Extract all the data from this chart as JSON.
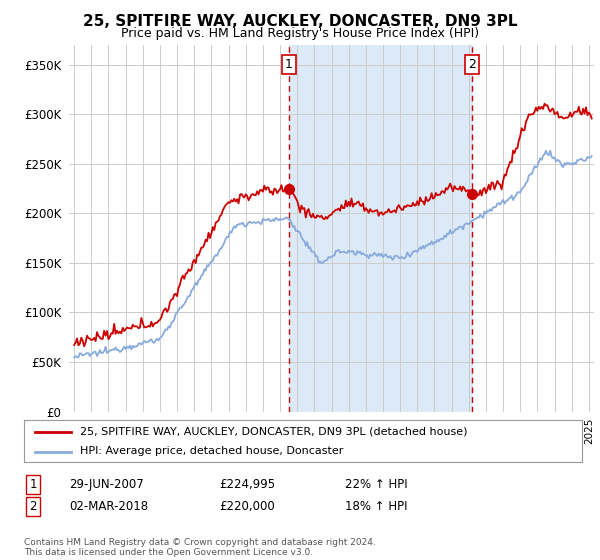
{
  "title": "25, SPITFIRE WAY, AUCKLEY, DONCASTER, DN9 3PL",
  "subtitle": "Price paid vs. HM Land Registry's House Price Index (HPI)",
  "background_color": "#ffffff",
  "plot_bg_color": "#ffffff",
  "shaded_bg_color": "#dce9f7",
  "grid_color": "#cccccc",
  "sale1_year": 2007.5,
  "sale2_year": 2018.17,
  "sale1_price": 224995,
  "sale2_price": 220000,
  "legend_entry1": "25, SPITFIRE WAY, AUCKLEY, DONCASTER, DN9 3PL (detached house)",
  "legend_entry2": "HPI: Average price, detached house, Doncaster",
  "table_row1": [
    "1",
    "29-JUN-2007",
    "£224,995",
    "22% ↑ HPI"
  ],
  "table_row2": [
    "2",
    "02-MAR-2018",
    "£220,000",
    "18% ↑ HPI"
  ],
  "footnote": "Contains HM Land Registry data © Crown copyright and database right 2024.\nThis data is licensed under the Open Government Licence v3.0.",
  "ylim": [
    0,
    370000
  ],
  "yticks": [
    0,
    50000,
    100000,
    150000,
    200000,
    250000,
    300000,
    350000
  ],
  "xlim_left": 1994.7,
  "xlim_right": 2025.3,
  "red_color": "#cc0000",
  "blue_color": "#88aadd",
  "dashed_color": "#cc0000"
}
